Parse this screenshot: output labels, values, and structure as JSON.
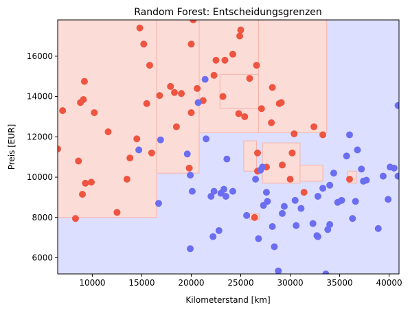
{
  "chart_data": {
    "type": "scatter",
    "title": "Random Forest: Entscheidungsgrenzen",
    "xlabel": "Kilometerstand [km]",
    "ylabel": "Preis [EUR]",
    "xlim": [
      6500,
      41000
    ],
    "ylim": [
      5200,
      17800
    ],
    "xticks": [
      10000,
      15000,
      20000,
      25000,
      30000,
      35000,
      40000
    ],
    "yticks": [
      6000,
      8000,
      10000,
      12000,
      14000,
      16000
    ],
    "grid": false,
    "legend": "none",
    "colors": {
      "red_points": "#ee5440",
      "blue_points": "#6b6ef0",
      "red_region": "#fbdcd7",
      "blue_region": "#dcdfff",
      "region_edge_red": "#f5b3aa",
      "region_edge_blue": "#b9bdf5"
    },
    "regions": [
      {
        "class": "red",
        "x": [
          6500,
          16500
        ],
        "y": [
          8000,
          17800
        ]
      },
      {
        "class": "red",
        "x": [
          16500,
          20800
        ],
        "y": [
          10200,
          17800
        ]
      },
      {
        "class": "red",
        "x": [
          20800,
          26800
        ],
        "y": [
          12200,
          17800
        ]
      },
      {
        "class": "red",
        "x": [
          26800,
          33700
        ],
        "y": [
          12200,
          17800
        ]
      },
      {
        "class": "red",
        "x": [
          22900,
          26800
        ],
        "y": [
          13400,
          15100
        ]
      },
      {
        "class": "red",
        "x": [
          25300,
          26600
        ],
        "y": [
          10300,
          11800
        ]
      },
      {
        "class": "red",
        "x": [
          27200,
          31000
        ],
        "y": [
          9700,
          11700
        ]
      },
      {
        "class": "red",
        "x": [
          31000,
          33300
        ],
        "y": [
          9800,
          10600
        ]
      },
      {
        "class": "red",
        "x": [
          35800,
          36700
        ],
        "y": [
          9700,
          10300
        ]
      },
      {
        "class": "red",
        "x": [
          25900,
          26900
        ],
        "y": [
          7900,
          8200
        ]
      }
    ],
    "series": [
      {
        "name": "",
        "color": "red",
        "points": [
          [
            6500,
            11400
          ],
          [
            7000,
            13300
          ],
          [
            8300,
            7950
          ],
          [
            8600,
            10800
          ],
          [
            8800,
            13700
          ],
          [
            9000,
            9150
          ],
          [
            9100,
            13850
          ],
          [
            9200,
            14750
          ],
          [
            9300,
            9700
          ],
          [
            9900,
            9750
          ],
          [
            10200,
            13200
          ],
          [
            11600,
            12250
          ],
          [
            12500,
            8250
          ],
          [
            13500,
            9900
          ],
          [
            13800,
            10950
          ],
          [
            14500,
            11900
          ],
          [
            14800,
            17400
          ],
          [
            15200,
            16600
          ],
          [
            15500,
            13650
          ],
          [
            15800,
            15550
          ],
          [
            16000,
            11200
          ],
          [
            16800,
            14050
          ],
          [
            17900,
            14500
          ],
          [
            18300,
            14200
          ],
          [
            18500,
            12500
          ],
          [
            19000,
            14150
          ],
          [
            19800,
            10450
          ],
          [
            20000,
            16600
          ],
          [
            20000,
            13200
          ],
          [
            20200,
            17800
          ],
          [
            20600,
            14400
          ],
          [
            21200,
            13800
          ],
          [
            22300,
            15050
          ],
          [
            22500,
            15800
          ],
          [
            23200,
            14000
          ],
          [
            23400,
            15800
          ],
          [
            24200,
            16100
          ],
          [
            24800,
            13150
          ],
          [
            24900,
            17000
          ],
          [
            25000,
            17300
          ],
          [
            25400,
            13000
          ],
          [
            25900,
            14900
          ],
          [
            26400,
            8000
          ],
          [
            26600,
            15550
          ],
          [
            26700,
            11200
          ],
          [
            26700,
            10300
          ],
          [
            27100,
            13400
          ],
          [
            27600,
            10500
          ],
          [
            28100,
            12700
          ],
          [
            28200,
            14450
          ],
          [
            28900,
            13650
          ],
          [
            29100,
            13700
          ],
          [
            29200,
            10600
          ],
          [
            30000,
            9900
          ],
          [
            30200,
            11200
          ],
          [
            30400,
            12150
          ],
          [
            31400,
            9250
          ],
          [
            32400,
            12500
          ],
          [
            33300,
            12100
          ],
          [
            36000,
            9900
          ]
        ]
      },
      {
        "name": "",
        "color": "blue",
        "points": [
          [
            14700,
            11350
          ],
          [
            16700,
            8700
          ],
          [
            16900,
            11850
          ],
          [
            19600,
            11150
          ],
          [
            19900,
            10100
          ],
          [
            19900,
            6450
          ],
          [
            20100,
            9300
          ],
          [
            20700,
            13700
          ],
          [
            21400,
            14850
          ],
          [
            21500,
            11900
          ],
          [
            22000,
            9050
          ],
          [
            22200,
            7050
          ],
          [
            22300,
            9300
          ],
          [
            22800,
            7350
          ],
          [
            23000,
            9200
          ],
          [
            23300,
            9400
          ],
          [
            23500,
            9050
          ],
          [
            23600,
            10900
          ],
          [
            24200,
            9300
          ],
          [
            25600,
            8100
          ],
          [
            26500,
            9900
          ],
          [
            26800,
            6950
          ],
          [
            27000,
            10350
          ],
          [
            27200,
            10500
          ],
          [
            27300,
            8600
          ],
          [
            27600,
            9250
          ],
          [
            27700,
            8800
          ],
          [
            28200,
            7550
          ],
          [
            28400,
            6550
          ],
          [
            28800,
            5350
          ],
          [
            29200,
            8200
          ],
          [
            29400,
            8550
          ],
          [
            30500,
            8850
          ],
          [
            30600,
            7600
          ],
          [
            31100,
            8450
          ],
          [
            32300,
            7700
          ],
          [
            32700,
            7100
          ],
          [
            32800,
            7050
          ],
          [
            32800,
            9050
          ],
          [
            33300,
            9450
          ],
          [
            33600,
            5200
          ],
          [
            33800,
            7400
          ],
          [
            34000,
            7650
          ],
          [
            34000,
            9600
          ],
          [
            34400,
            10200
          ],
          [
            34800,
            8750
          ],
          [
            35200,
            8850
          ],
          [
            35700,
            11050
          ],
          [
            36000,
            12100
          ],
          [
            36300,
            7950
          ],
          [
            36600,
            8800
          ],
          [
            36800,
            11350
          ],
          [
            37200,
            10400
          ],
          [
            37400,
            9800
          ],
          [
            37700,
            9850
          ],
          [
            38900,
            7450
          ],
          [
            39400,
            10050
          ],
          [
            39900,
            8900
          ],
          [
            40100,
            10500
          ],
          [
            40500,
            10450
          ],
          [
            40900,
            13550
          ],
          [
            40900,
            10050
          ]
        ]
      }
    ]
  }
}
